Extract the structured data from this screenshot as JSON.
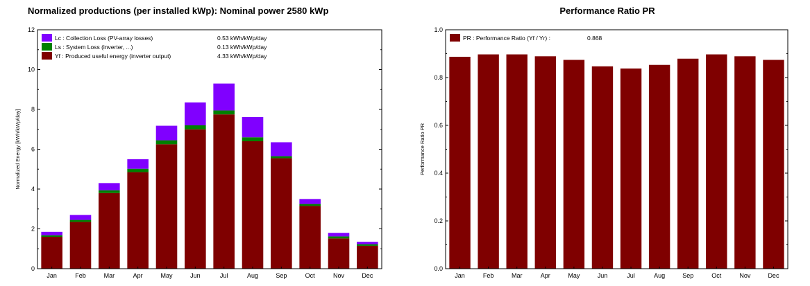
{
  "chart_data": [
    {
      "type": "bar",
      "stacked": true,
      "title": "Normalized productions (per installed kWp):  Nominal power 2580 kWp",
      "ylabel": "Normalized Energy  [kWh/kWp/day]",
      "xlabel": "",
      "ylim": [
        0,
        12
      ],
      "yticks": [
        0,
        2,
        4,
        6,
        8,
        10,
        12
      ],
      "categories": [
        "Jan",
        "Feb",
        "Mar",
        "Apr",
        "May",
        "Jun",
        "Jul",
        "Aug",
        "Sep",
        "Oct",
        "Nov",
        "Dec"
      ],
      "legend_position": "top-left",
      "series": [
        {
          "name": "Yf : Produced useful energy  (inverter output)",
          "legend_value": "4.33 kWh/kWp/day",
          "color": "#7f0000",
          "values": [
            1.6,
            2.35,
            3.8,
            4.85,
            6.25,
            7.0,
            7.75,
            6.4,
            5.55,
            3.15,
            1.52,
            1.15
          ]
        },
        {
          "name": "Ls : System Loss  (inverter, ...)",
          "legend_value": "0.13 kWh/kWp/day",
          "color": "#008000",
          "values": [
            0.08,
            0.1,
            0.14,
            0.17,
            0.2,
            0.2,
            0.2,
            0.2,
            0.1,
            0.1,
            0.1,
            0.08
          ]
        },
        {
          "name": "Lc : Collection Loss (PV-array losses)",
          "legend_value": "0.53 kWh/kWp/day",
          "color": "#8000ff",
          "values": [
            0.17,
            0.25,
            0.36,
            0.48,
            0.73,
            1.15,
            1.35,
            1.02,
            0.7,
            0.25,
            0.18,
            0.12
          ]
        }
      ]
    },
    {
      "type": "bar",
      "title": "Performance Ratio PR",
      "ylabel": "Performance Ratio PR",
      "xlabel": "",
      "ylim": [
        0,
        1.0
      ],
      "yticks": [
        0.0,
        0.2,
        0.4,
        0.6,
        0.8,
        1.0
      ],
      "categories": [
        "Jan",
        "Feb",
        "Mar",
        "Apr",
        "May",
        "Jun",
        "Jul",
        "Aug",
        "Sep",
        "Oct",
        "Nov",
        "Dec"
      ],
      "legend_position": "top-left",
      "series": [
        {
          "name": "PR : Performance Ratio (Yf / Yr) :",
          "legend_value": "0.868",
          "color": "#7f0000",
          "values": [
            0.887,
            0.897,
            0.897,
            0.889,
            0.874,
            0.847,
            0.838,
            0.853,
            0.879,
            0.897,
            0.889,
            0.874
          ]
        }
      ]
    }
  ]
}
